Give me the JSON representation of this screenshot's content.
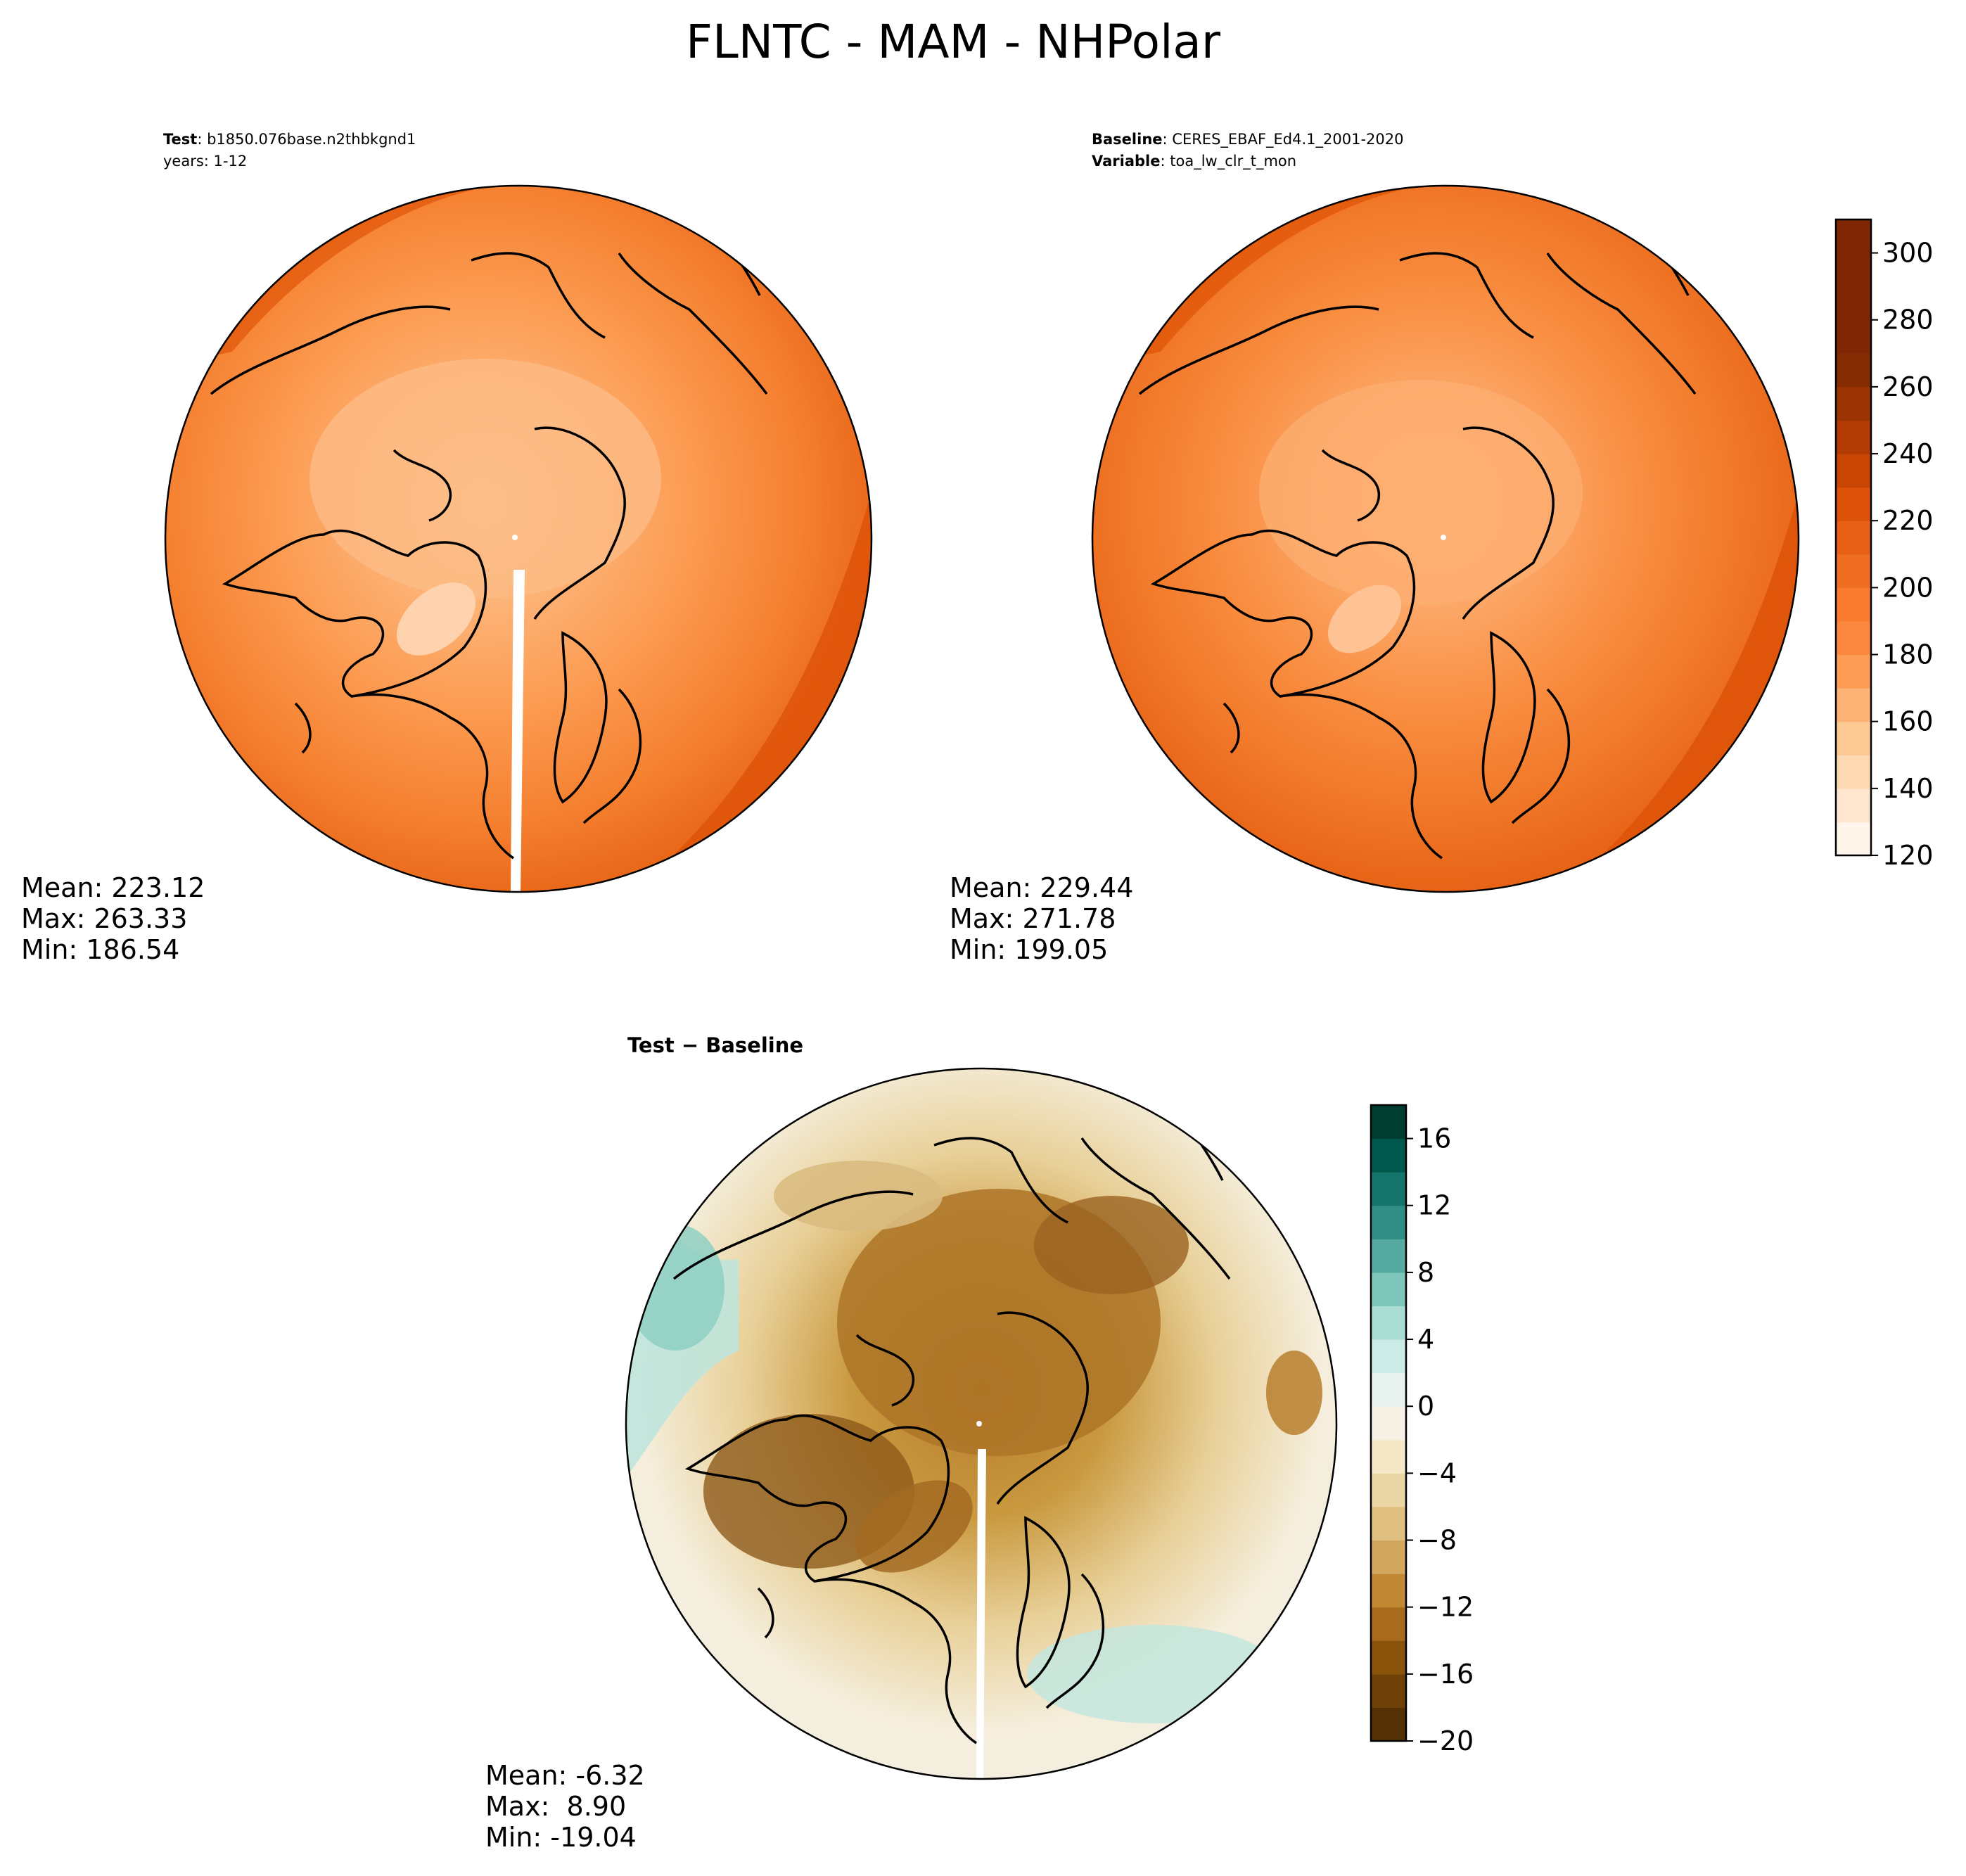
{
  "figure": {
    "title": "FLNTC - MAM - NHPolar"
  },
  "panels": {
    "test": {
      "header": [
        {
          "label": "Test",
          "sep": ": ",
          "value": "b1850.076base.n2thbkgnd1"
        },
        {
          "label": "",
          "sep": "",
          "value": "years: 1-12"
        }
      ],
      "stats": {
        "mean": "Mean: 223.12",
        "max": "Max: 263.33",
        "min": "Min: 186.54"
      }
    },
    "baseline": {
      "header": [
        {
          "label": "Baseline",
          "sep": ": ",
          "value": "CERES_EBAF_Ed4.1_2001-2020"
        },
        {
          "label": "Variable",
          "sep": ": ",
          "value": "toa_lw_clr_t_mon"
        }
      ],
      "stats": {
        "mean": "Mean: 229.44",
        "max": "Max: 271.78",
        "min": "Min: 199.05"
      }
    },
    "diff": {
      "header": [
        {
          "label": "Test − Baseline",
          "sep": "",
          "value": ""
        }
      ],
      "stats": {
        "mean": "Mean: -6.32",
        "max": "Max:  8.90",
        "min": "Min: -19.04"
      }
    }
  },
  "chart_data": [
    {
      "type": "heatmap",
      "panel": "Test",
      "projection": "north-polar-stereographic",
      "colormap": "Oranges",
      "levels": [
        120,
        130,
        140,
        150,
        160,
        170,
        180,
        190,
        200,
        210,
        220,
        230,
        240,
        250,
        260,
        270,
        280,
        290,
        300,
        310
      ],
      "colorbar_ticks": [
        120,
        140,
        160,
        180,
        200,
        220,
        240,
        260,
        280,
        300
      ],
      "mean": 223.12,
      "max": 263.33,
      "min": 186.54
    },
    {
      "type": "heatmap",
      "panel": "Baseline",
      "projection": "north-polar-stereographic",
      "colormap": "Oranges",
      "levels": [
        120,
        130,
        140,
        150,
        160,
        170,
        180,
        190,
        200,
        210,
        220,
        230,
        240,
        250,
        260,
        270,
        280,
        290,
        300,
        310
      ],
      "colorbar_ticks": [
        120,
        140,
        160,
        180,
        200,
        220,
        240,
        260,
        280,
        300
      ],
      "mean": 229.44,
      "max": 271.78,
      "min": 199.05
    },
    {
      "type": "heatmap",
      "panel": "Test − Baseline",
      "projection": "north-polar-stereographic",
      "colormap": "BrBG",
      "levels": [
        -20,
        -18,
        -16,
        -14,
        -12,
        -10,
        -8,
        -6,
        -4,
        -2,
        0,
        2,
        4,
        6,
        8,
        10,
        12,
        14,
        16,
        18
      ],
      "colorbar_ticks": [
        -20,
        -16,
        -12,
        -8,
        -4,
        0,
        4,
        8,
        12,
        16
      ],
      "mean": -6.32,
      "max": 8.9,
      "min": -19.04
    }
  ],
  "colors": {
    "oranges": [
      "#fff5eb",
      "#fee6ce",
      "#fdd9b3",
      "#fdc995",
      "#fdb275",
      "#fd9c55",
      "#fc8840",
      "#f87b2f",
      "#f06e22",
      "#e85f16",
      "#db5208",
      "#c84503",
      "#b23b03",
      "#9c3302",
      "#862c03",
      "#7f2704",
      "#7f2704",
      "#7f2704",
      "#7f2704"
    ],
    "brbg": [
      "#543005",
      "#6e4008",
      "#8a530b",
      "#a86a1d",
      "#c08832",
      "#d2a760",
      "#dfc080",
      "#ebd7a5",
      "#f4e8c6",
      "#f6f1e4",
      "#e8f3f0",
      "#cbece6",
      "#a9ddd3",
      "#7fc6ba",
      "#55a9a0",
      "#318e86",
      "#15746b",
      "#01594e",
      "#003c30"
    ],
    "test_field": [
      "#fdb275",
      "#fd9c55",
      "#f98a3d",
      "#f07523",
      "#e5600f"
    ],
    "baseline_field": [
      "#fdb275",
      "#fd9c55",
      "#f98a3d",
      "#f07523",
      "#e5600f"
    ],
    "land_outline": "#000000"
  }
}
